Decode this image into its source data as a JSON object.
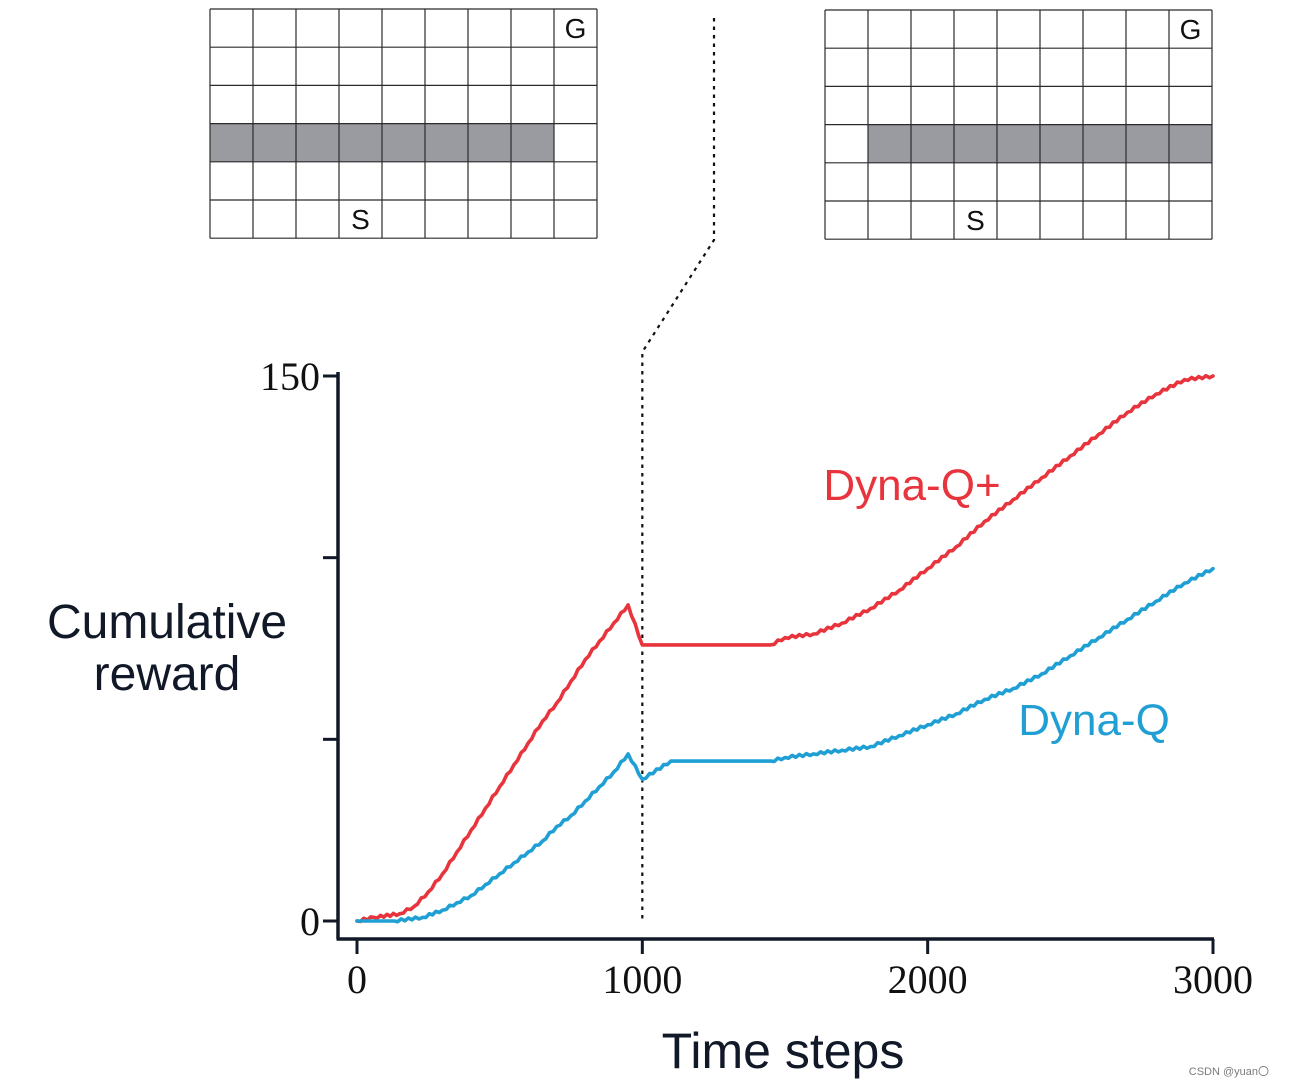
{
  "chart_data": {
    "type": "line",
    "xlabel": "Time steps",
    "ylabel": [
      "Cumulative",
      "reward"
    ],
    "xlim": [
      0,
      3000
    ],
    "ylim": [
      0,
      150
    ],
    "xticks": [
      0,
      1000,
      2000,
      3000
    ],
    "xtick_labels": [
      "0",
      "1000",
      "2000",
      "3000"
    ],
    "yticks": [
      0,
      50,
      100,
      150
    ],
    "ytick_labels": [
      "0",
      "",
      "",
      "150"
    ],
    "event_x": 1000,
    "series": [
      {
        "name": "Dyna-Q+",
        "color": "#e8353d",
        "x": [
          0,
          60,
          150,
          200,
          250,
          300,
          350,
          400,
          450,
          500,
          550,
          600,
          650,
          700,
          750,
          800,
          850,
          900,
          950,
          1000,
          1100,
          1200,
          1300,
          1400,
          1450,
          1500,
          1600,
          1700,
          1800,
          1900,
          2000,
          2100,
          2200,
          2300,
          2400,
          2500,
          2600,
          2700,
          2800,
          2900,
          3000
        ],
        "values": [
          0,
          1,
          2,
          4,
          8,
          13,
          19,
          25,
          31,
          37,
          43,
          49,
          55,
          60,
          66,
          72,
          77,
          82,
          87,
          76,
          76,
          76,
          76,
          76,
          76,
          78,
          79,
          82,
          86,
          91,
          97,
          103,
          110,
          116,
          122,
          128,
          134,
          140,
          145,
          149,
          150
        ]
      },
      {
        "name": "Dyna-Q",
        "color": "#1f9fd3",
        "x": [
          0,
          130,
          230,
          300,
          350,
          400,
          450,
          500,
          550,
          600,
          650,
          700,
          750,
          800,
          850,
          900,
          950,
          1000,
          1100,
          1200,
          1300,
          1400,
          1450,
          1500,
          1600,
          1700,
          1800,
          1900,
          2000,
          2100,
          2200,
          2300,
          2400,
          2500,
          2600,
          2700,
          2800,
          2900,
          3000
        ],
        "values": [
          0,
          0,
          1,
          3,
          5,
          7,
          10,
          13,
          16,
          19,
          22,
          26,
          29,
          33,
          37,
          41,
          46,
          39,
          44,
          44,
          44,
          44,
          44,
          45,
          46,
          47,
          48,
          51,
          54,
          57,
          61,
          64,
          68,
          73,
          78,
          83,
          88,
          93,
          97
        ]
      }
    ],
    "annotations": [
      {
        "text": "Dyna-Q+",
        "color": "#e8353d",
        "near_series": "Dyna-Q+"
      },
      {
        "text": "Dyna-Q",
        "color": "#1f9fd3",
        "near_series": "Dyna-Q"
      }
    ]
  },
  "gridworlds": [
    {
      "name": "before-change",
      "rows": 6,
      "cols": 9,
      "wall_row": 3,
      "wall_cols": [
        0,
        1,
        2,
        3,
        4,
        5,
        6,
        7
      ],
      "start_label": "S",
      "start_row": 5,
      "start_col": 3,
      "goal_label": "G",
      "goal_row": 0,
      "goal_col": 8
    },
    {
      "name": "after-change",
      "rows": 6,
      "cols": 9,
      "wall_row": 3,
      "wall_cols": [
        1,
        2,
        3,
        4,
        5,
        6,
        7,
        8
      ],
      "start_label": "S",
      "start_row": 5,
      "start_col": 3,
      "goal_label": "G",
      "goal_row": 0,
      "goal_col": 8
    }
  ],
  "colors": {
    "wall": "#9a9ba0",
    "axis": "#111827",
    "grid_line": "#2b2b2b"
  },
  "watermark": "CSDN @yuan〇"
}
